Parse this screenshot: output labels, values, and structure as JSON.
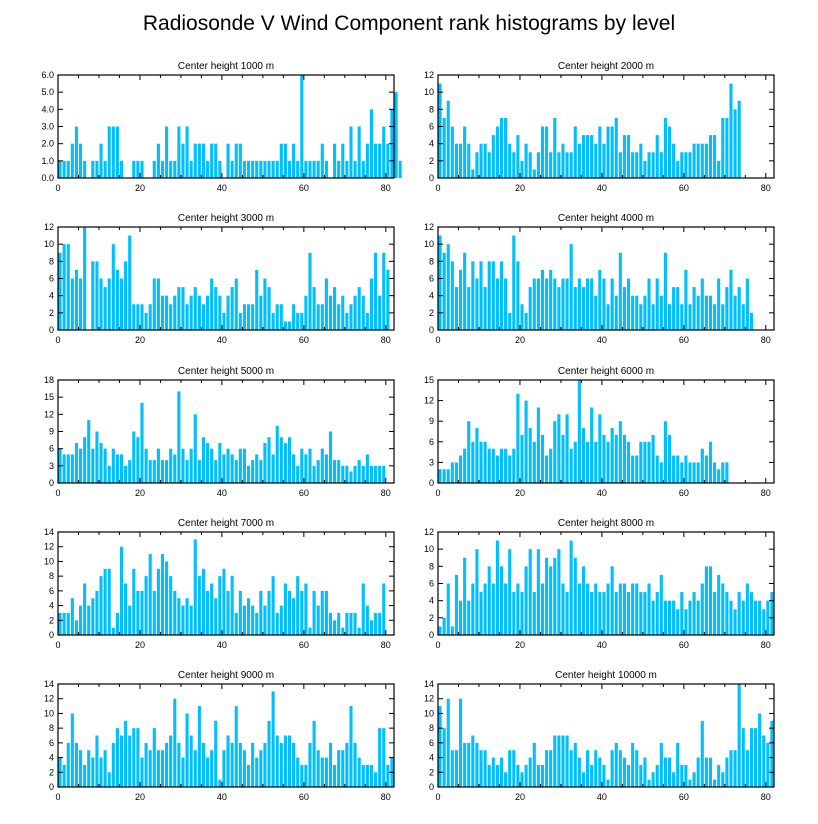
{
  "figure": {
    "title": "Radiosonde V Wind Component rank histograms by level",
    "bar_color": "#00BFFF",
    "x_ticks": [
      0,
      20,
      40,
      60,
      80
    ],
    "xlim": [
      0,
      82
    ]
  },
  "chart_data": [
    {
      "type": "bar",
      "title": "Center height 1000 m",
      "ylim": [
        0,
        6
      ],
      "y_ticks": [
        "0.0",
        "1.0",
        "2.0",
        "3.0",
        "4.0",
        "5.0",
        "6.0"
      ],
      "values": [
        1,
        1,
        1,
        2,
        3,
        2,
        1,
        0,
        1,
        1,
        2,
        1,
        3,
        3,
        3,
        1,
        0,
        0,
        1,
        1,
        1,
        0,
        0,
        1,
        2,
        1,
        3,
        1,
        1,
        3,
        2,
        3,
        1,
        2,
        2,
        2,
        1,
        2,
        2,
        1,
        0,
        2,
        1,
        2,
        2,
        1,
        1,
        1,
        1,
        1,
        1,
        1,
        1,
        1,
        2,
        2,
        1,
        2,
        1,
        6,
        1,
        1,
        1,
        1,
        2,
        1,
        0,
        2,
        1,
        2,
        1,
        3,
        1,
        3,
        1,
        2,
        4,
        2,
        2,
        3,
        2,
        4,
        5,
        1
      ]
    },
    {
      "type": "bar",
      "title": "Center height 2000 m",
      "ylim": [
        0,
        12
      ],
      "y_ticks": [
        "0",
        "2",
        "4",
        "6",
        "8",
        "10",
        "12"
      ],
      "values": [
        11,
        7,
        9,
        6,
        4,
        4,
        6,
        4,
        1,
        3,
        4,
        4,
        3,
        5,
        6,
        7,
        7,
        4,
        3,
        5,
        2,
        4,
        3,
        1,
        3,
        6,
        6,
        3,
        7,
        3,
        4,
        3,
        3,
        6,
        4,
        5,
        5,
        5,
        4,
        6,
        4,
        6,
        6,
        7,
        3,
        5,
        5,
        3,
        3,
        4,
        2,
        3,
        3,
        5,
        3,
        7,
        6,
        4,
        2,
        3,
        3,
        3,
        4,
        4,
        4,
        4,
        5,
        5,
        2,
        7,
        7,
        11,
        8,
        9
      ]
    },
    {
      "type": "bar",
      "title": "Center height 3000 m",
      "ylim": [
        0,
        12
      ],
      "y_ticks": [
        "0",
        "2",
        "4",
        "6",
        "8",
        "10",
        "12"
      ],
      "values": [
        9,
        10,
        10,
        6,
        7,
        6,
        12,
        0,
        8,
        8,
        6,
        5,
        6,
        10,
        7,
        6,
        8,
        11,
        3,
        3,
        3,
        2,
        3,
        6,
        6,
        4,
        4,
        3,
        4,
        5,
        5,
        3,
        4,
        5,
        4,
        3,
        4,
        6,
        5,
        4,
        2,
        4,
        5,
        6,
        2,
        3,
        3,
        3,
        7,
        4,
        6,
        5,
        2,
        3,
        3,
        1,
        1,
        3,
        2,
        2,
        4,
        9,
        5,
        3,
        3,
        6,
        4,
        5,
        3,
        4,
        2,
        3,
        4,
        5,
        4,
        2,
        6,
        9,
        4,
        9,
        7
      ]
    },
    {
      "type": "bar",
      "title": "Center height 4000 m",
      "ylim": [
        0,
        12
      ],
      "y_ticks": [
        "0",
        "2",
        "4",
        "6",
        "8",
        "10",
        "12"
      ],
      "values": [
        11,
        9,
        10,
        8,
        5,
        7,
        9,
        5,
        8,
        6,
        8,
        5,
        8,
        8,
        6,
        8,
        6,
        2,
        11,
        8,
        3,
        2,
        5,
        6,
        6,
        7,
        6,
        7,
        6,
        5,
        6,
        6,
        10,
        5,
        6,
        5,
        6,
        6,
        4,
        7,
        6,
        3,
        6,
        4,
        9,
        5,
        6,
        4,
        4,
        3,
        4,
        6,
        3,
        6,
        4,
        9,
        3,
        5,
        5,
        3,
        7,
        3,
        5,
        4,
        6,
        4,
        4,
        3,
        6,
        3,
        5,
        7,
        4,
        5,
        3,
        6,
        2
      ]
    },
    {
      "type": "bar",
      "title": "Center height 5000 m",
      "ylim": [
        0,
        18
      ],
      "y_ticks": [
        "0",
        "3",
        "6",
        "9",
        "12",
        "15",
        "18"
      ],
      "values": [
        6,
        5,
        5,
        5,
        7,
        6,
        8,
        11,
        6,
        9,
        7,
        6,
        3,
        6,
        5,
        5,
        3,
        4,
        9,
        8,
        14,
        6,
        4,
        4,
        6,
        4,
        4,
        6,
        5,
        16,
        6,
        4,
        6,
        12,
        4,
        8,
        7,
        6,
        4,
        7,
        5,
        6,
        5,
        4,
        6,
        6,
        3,
        4,
        5,
        4,
        7,
        8,
        5,
        10,
        8,
        7,
        8,
        5,
        3,
        6,
        5,
        6,
        3,
        4,
        6,
        5,
        9,
        4,
        4,
        3,
        3,
        2,
        3,
        4,
        3,
        5,
        3,
        3,
        3,
        3
      ]
    },
    {
      "type": "bar",
      "title": "Center height 6000 m",
      "ylim": [
        0,
        15
      ],
      "y_ticks": [
        "0",
        "3",
        "6",
        "9",
        "12",
        "15"
      ],
      "values": [
        2,
        2,
        2,
        3,
        3,
        4,
        5,
        9,
        6,
        8,
        6,
        6,
        5,
        5,
        4,
        5,
        5,
        4,
        5,
        13,
        7,
        12,
        8,
        6,
        11,
        7,
        4,
        5,
        9,
        10,
        7,
        10,
        5,
        6,
        15,
        8,
        6,
        11,
        6,
        10,
        7,
        6,
        8,
        7,
        9,
        7,
        6,
        4,
        4,
        6,
        6,
        6,
        7,
        4,
        3,
        9,
        7,
        4,
        4,
        3,
        4,
        3,
        3,
        3,
        5,
        4,
        6,
        3,
        2,
        3,
        3
      ]
    },
    {
      "type": "bar",
      "title": "Center height 7000 m",
      "ylim": [
        0,
        14
      ],
      "y_ticks": [
        "0",
        "2",
        "4",
        "6",
        "8",
        "10",
        "12",
        "14"
      ],
      "values": [
        3,
        3,
        3,
        5,
        2,
        4,
        7,
        4,
        5,
        6,
        8,
        9,
        9,
        1,
        3,
        12,
        7,
        4,
        9,
        6,
        6,
        8,
        11,
        6,
        9,
        11,
        10,
        8,
        6,
        5,
        4,
        5,
        4,
        13,
        8,
        9,
        6,
        7,
        5,
        8,
        9,
        6,
        8,
        3,
        6,
        4,
        5,
        4,
        3,
        6,
        4,
        6,
        8,
        3,
        4,
        7,
        6,
        5,
        8,
        6,
        7,
        1,
        6,
        4,
        6,
        6,
        3,
        2,
        3,
        1,
        3,
        3,
        3,
        1,
        7,
        4,
        2,
        3,
        3,
        7
      ]
    },
    {
      "type": "bar",
      "title": "Center height 8000 m",
      "ylim": [
        0,
        12
      ],
      "y_ticks": [
        "0",
        "2",
        "4",
        "6",
        "8",
        "10",
        "12"
      ],
      "values": [
        1,
        2,
        6,
        1,
        7,
        4,
        9,
        4,
        6,
        10,
        5,
        6,
        8,
        6,
        11,
        8,
        6,
        10,
        5,
        6,
        5,
        8,
        10,
        5,
        10,
        6,
        9,
        8,
        9,
        10,
        6,
        5,
        11,
        9,
        6,
        8,
        6,
        5,
        6,
        5,
        5,
        6,
        8,
        5,
        6,
        6,
        5,
        6,
        6,
        5,
        5,
        6,
        4,
        5,
        7,
        4,
        4,
        4,
        3,
        5,
        3,
        4,
        5,
        4,
        6,
        8,
        8,
        5,
        7,
        6,
        5,
        4,
        3,
        5,
        4,
        6,
        5,
        4,
        4,
        3,
        4,
        5
      ]
    },
    {
      "type": "bar",
      "title": "Center height 9000 m",
      "ylim": [
        0,
        14
      ],
      "y_ticks": [
        "0",
        "2",
        "4",
        "6",
        "8",
        "10",
        "12",
        "14"
      ],
      "values": [
        4,
        3,
        6,
        10,
        6,
        5,
        3,
        5,
        4,
        7,
        4,
        5,
        2,
        6,
        8,
        7,
        9,
        7,
        8,
        8,
        4,
        6,
        5,
        8,
        5,
        5,
        6,
        7,
        12,
        6,
        4,
        10,
        7,
        5,
        11,
        6,
        4,
        5,
        9,
        1,
        5,
        7,
        6,
        11,
        6,
        5,
        3,
        6,
        4,
        5,
        6,
        9,
        13,
        7,
        6,
        7,
        7,
        6,
        4,
        3,
        3,
        6,
        9,
        5,
        4,
        4,
        6,
        3,
        5,
        5,
        6,
        11,
        6,
        4,
        3,
        3,
        3,
        2,
        8,
        8,
        3,
        4
      ]
    },
    {
      "type": "bar",
      "title": "Center height 10000 m",
      "ylim": [
        0,
        14
      ],
      "y_ticks": [
        "0",
        "2",
        "4",
        "6",
        "8",
        "10",
        "12",
        "14"
      ],
      "values": [
        11,
        8,
        12,
        5,
        5,
        12,
        6,
        6,
        7,
        6,
        5,
        5,
        3,
        4,
        3,
        4,
        2,
        5,
        5,
        3,
        2,
        3,
        4,
        6,
        3,
        3,
        5,
        5,
        7,
        7,
        7,
        7,
        5,
        6,
        4,
        2,
        5,
        3,
        5,
        4,
        3,
        1,
        5,
        6,
        5,
        4,
        3,
        6,
        5,
        3,
        4,
        1,
        2,
        3,
        6,
        4,
        4,
        2,
        6,
        3,
        3,
        1,
        2,
        4,
        9,
        4,
        4,
        1,
        3,
        2,
        4,
        5,
        5,
        14,
        8,
        5,
        8,
        8,
        10,
        7,
        6,
        9
      ]
    }
  ]
}
